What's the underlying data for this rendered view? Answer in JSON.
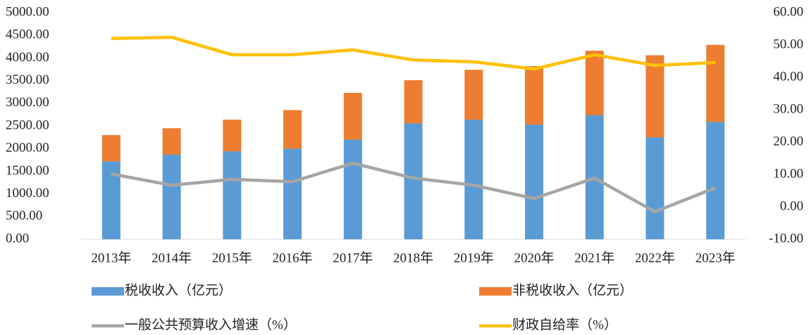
{
  "chart_data": {
    "type": "bar",
    "categories": [
      "2013年",
      "2014年",
      "2015年",
      "2016年",
      "2017年",
      "2018年",
      "2019年",
      "2020年",
      "2021年",
      "2022年",
      "2023年"
    ],
    "series": [
      {
        "name": "税收收入（亿元）",
        "color": "#5b9bd5",
        "type": "bar",
        "values": [
          1720,
          1870,
          1940,
          2000,
          2200,
          2560,
          2640,
          2530,
          2740,
          2250,
          2590
        ]
      },
      {
        "name": "非税收收入（亿元）",
        "color": "#ed7d31",
        "type": "bar",
        "values": [
          580,
          580,
          700,
          850,
          1030,
          950,
          1100,
          1290,
          1420,
          1810,
          1700
        ]
      },
      {
        "name": "一般公共预算收入增速（%）",
        "color": "#a5a5a5",
        "type": "line",
        "axis": "y2",
        "values": [
          10.2,
          6.7,
          8.5,
          7.8,
          13.5,
          8.9,
          6.7,
          2.6,
          8.9,
          -1.5,
          5.9
        ]
      },
      {
        "name": "财政自给率（%）",
        "color": "#ffc000",
        "type": "line",
        "axis": "y2",
        "values": [
          52,
          52.4,
          47,
          47,
          48.5,
          45.4,
          44.8,
          42.6,
          47,
          43.7,
          44.6
        ]
      }
    ],
    "stacked": true,
    "ylim": [
      0,
      5000
    ],
    "yticks": [
      {
        "value": 0,
        "label": "0.00"
      },
      {
        "value": 500,
        "label": "500.00"
      },
      {
        "value": 1000,
        "label": "1000.00"
      },
      {
        "value": 1500,
        "label": "1500.00"
      },
      {
        "value": 2000,
        "label": "2000.00"
      },
      {
        "value": 2500,
        "label": "2500.00"
      },
      {
        "value": 3000,
        "label": "3000.00"
      },
      {
        "value": 3500,
        "label": "3500.00"
      },
      {
        "value": 4000,
        "label": "4000.00"
      },
      {
        "value": 4500,
        "label": "4500.00"
      },
      {
        "value": 5000,
        "label": "5000.00"
      }
    ],
    "y2lim": [
      -10,
      60
    ],
    "y2ticks": [
      {
        "value": -10,
        "label": "-10.00"
      },
      {
        "value": 0,
        "label": "0.00"
      },
      {
        "value": 10,
        "label": "10.00"
      },
      {
        "value": 20,
        "label": "20.00"
      },
      {
        "value": 30,
        "label": "30.00"
      },
      {
        "value": 40,
        "label": "40.00"
      },
      {
        "value": 50,
        "label": "50.00"
      },
      {
        "value": 60,
        "label": "60.00"
      }
    ],
    "legend": "bottom"
  }
}
